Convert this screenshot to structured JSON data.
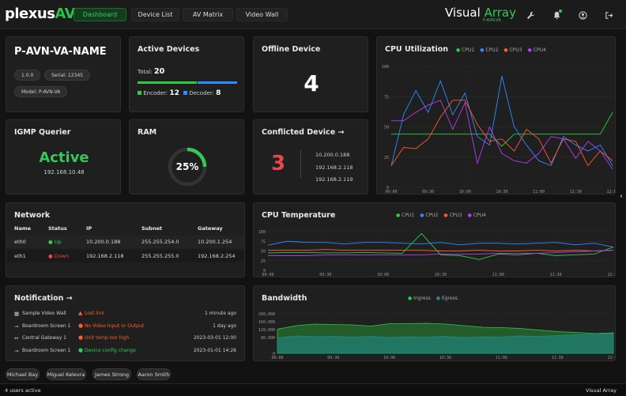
{
  "app": {
    "logo_main": "plexus",
    "logo_accent": "AV",
    "brand_main": "Visual",
    "brand_accent": "Array",
    "brand_sub": "P-AVN-VA"
  },
  "nav": {
    "items": [
      "Dashboard",
      "Device List",
      "AV Matrix",
      "Video Wall"
    ],
    "active": "Dashboard"
  },
  "toolbar_icons": [
    "wrench-icon",
    "bell-icon",
    "user-circle-icon",
    "logout-icon"
  ],
  "device": {
    "name": "P-AVN-VA-NAME",
    "version": "1.0.0",
    "serial": "Serial: 12345",
    "model": "Model: P-AVN-VA"
  },
  "active_devices": {
    "title": "Active Devices",
    "total_label": "Total:",
    "total": "20",
    "encoder_label": "Encoder:",
    "encoder": "12",
    "decoder_label": "Decoder:",
    "decoder": "8"
  },
  "offline": {
    "title": "Offline Device",
    "count": "4"
  },
  "igmp": {
    "title": "IGMP Querier",
    "status": "Active",
    "ip": "192.168.10.48"
  },
  "ram": {
    "title": "RAM",
    "value": "25%",
    "fraction": 0.25
  },
  "conflicted": {
    "title": "Conflicted Device",
    "count": "3",
    "ips": [
      "10.200.0.188",
      "192.168.2.118",
      "192.168.2.119"
    ]
  },
  "network": {
    "title": "Network",
    "headers": [
      "Name",
      "Status",
      "IP",
      "Subnet",
      "Gateway"
    ],
    "rows": [
      {
        "name": "eth0",
        "status": "Up",
        "ip": "10.200.0.188",
        "subnet": "255.255.254.0",
        "gateway": "10.200.1.254"
      },
      {
        "name": "eth1",
        "status": "Down",
        "ip": "192.168.2.118",
        "subnet": "255.255.255.0",
        "gateway": "192.168.2.254"
      }
    ]
  },
  "notification": {
    "title": "Notification",
    "items": [
      {
        "source": "Sample Video Wall",
        "message": "Lost link",
        "time": "1 minute ago",
        "level": "error"
      },
      {
        "source": "Boardroom Screen 1",
        "message": "No Video Input or Output",
        "time": "1 day ago",
        "level": "warn"
      },
      {
        "source": "Central Gateway 1",
        "message": "Unit temp too high",
        "time": "2023-03-01 12:00",
        "level": "warn"
      },
      {
        "source": "Boardroom Screen 1",
        "message": "Device config change",
        "time": "2023-01-01 14:26",
        "level": "ok"
      }
    ]
  },
  "users": [
    "Michael Bay",
    "Miguel Kelevra",
    "James Strong",
    "Aaron Smith"
  ],
  "footer": {
    "left": "4 users active",
    "right": "Visual Array"
  },
  "colors": {
    "cpu1": "#2ecc40",
    "cpu2": "#2f8cff",
    "cpu3": "#ff5a2a",
    "cpu4": "#b43cf0",
    "ingress": "#2ecc40",
    "egress": "#1d8c8c"
  },
  "chart_data": [
    {
      "type": "line",
      "title": "CPU Utilization",
      "x": [
        "09:00",
        "09:10",
        "09:20",
        "09:30",
        "09:40",
        "09:50",
        "10:00",
        "10:10",
        "10:20",
        "10:30",
        "10:40",
        "10:50",
        "11:00",
        "11:10",
        "11:20",
        "11:30",
        "11:40",
        "11:50",
        "12:00"
      ],
      "xticks": [
        "09:00",
        "09:30",
        "10:00",
        "10:30",
        "11:00",
        "11:30",
        "12:00"
      ],
      "yticks": [
        "0",
        "25",
        "50",
        "75",
        "100"
      ],
      "ylim": [
        0,
        100
      ],
      "series": [
        {
          "name": "CPU1",
          "values": [
            44,
            44,
            44,
            44,
            44,
            44,
            44,
            44,
            44,
            34,
            44,
            44,
            44,
            44,
            44,
            44,
            44,
            44,
            62
          ]
        },
        {
          "name": "CPU2",
          "values": [
            18,
            60,
            80,
            62,
            88,
            60,
            78,
            42,
            35,
            92,
            50,
            35,
            22,
            18,
            42,
            35,
            30,
            35,
            18
          ]
        },
        {
          "name": "CPU3",
          "values": [
            18,
            33,
            32,
            40,
            58,
            72,
            72,
            52,
            38,
            40,
            30,
            48,
            40,
            20,
            40,
            38,
            18,
            30,
            22
          ]
        },
        {
          "name": "CPU4",
          "values": [
            55,
            55,
            62,
            68,
            72,
            48,
            70,
            20,
            50,
            28,
            22,
            20,
            28,
            42,
            40,
            24,
            38,
            30,
            15
          ]
        }
      ]
    },
    {
      "type": "line",
      "title": "CPU Temperature",
      "x": [
        "09:00",
        "09:10",
        "09:20",
        "09:30",
        "09:40",
        "09:50",
        "10:00",
        "10:10",
        "10:20",
        "10:30",
        "10:40",
        "10:50",
        "11:00",
        "11:10",
        "11:20",
        "11:30",
        "11:40",
        "11:50",
        "12:00"
      ],
      "xticks": [
        "09:00",
        "09:30",
        "10:00",
        "10:30",
        "11:00",
        "11:30",
        "12:00"
      ],
      "yticks": [
        "0",
        "25",
        "50",
        "75",
        "100"
      ],
      "ylim": [
        0,
        100
      ],
      "series": [
        {
          "name": "CPU1",
          "values": [
            45,
            46,
            46,
            45,
            45,
            46,
            45,
            44,
            95,
            40,
            38,
            28,
            42,
            40,
            44,
            38,
            40,
            42,
            60
          ]
        },
        {
          "name": "CPU2",
          "values": [
            65,
            75,
            72,
            72,
            68,
            72,
            72,
            70,
            68,
            72,
            66,
            70,
            70,
            68,
            70,
            72,
            66,
            70,
            60
          ]
        },
        {
          "name": "CPU3",
          "values": [
            52,
            52,
            52,
            54,
            52,
            52,
            52,
            52,
            52,
            50,
            50,
            52,
            50,
            50,
            52,
            50,
            52,
            50,
            52
          ]
        },
        {
          "name": "CPU4",
          "values": [
            38,
            38,
            38,
            40,
            40,
            40,
            40,
            40,
            40,
            42,
            42,
            42,
            44,
            44,
            44,
            46,
            48,
            50,
            52
          ]
        }
      ]
    },
    {
      "type": "area",
      "title": "Bandwidth",
      "x": [
        "09:00",
        "09:10",
        "09:20",
        "09:30",
        "09:40",
        "09:50",
        "10:00",
        "10:10",
        "10:20",
        "10:30",
        "10:40",
        "10:50",
        "11:00",
        "11:10",
        "11:20",
        "11:30",
        "11:40",
        "11:50",
        "12:00"
      ],
      "xticks": [
        "09:00",
        "09:30",
        "10:00",
        "10:30",
        "11:00",
        "11:30",
        "12:00"
      ],
      "yticks": [
        "0",
        "80,000",
        "120,000",
        "160,000",
        "200,000"
      ],
      "ylim": [
        0,
        200000
      ],
      "series": [
        {
          "name": "Ingress",
          "values": [
            122000,
            140000,
            148000,
            146000,
            144000,
            138000,
            150000,
            150000,
            152000,
            148000,
            140000,
            132000,
            130000,
            126000,
            118000,
            110000,
            106000,
            100000,
            104000
          ]
        },
        {
          "name": "Egress",
          "values": [
            78000,
            88000,
            84000,
            86000,
            82000,
            86000,
            80000,
            84000,
            82000,
            86000,
            80000,
            84000,
            82000,
            88000,
            86000,
            90000,
            94000,
            98000,
            100000
          ]
        }
      ]
    }
  ]
}
